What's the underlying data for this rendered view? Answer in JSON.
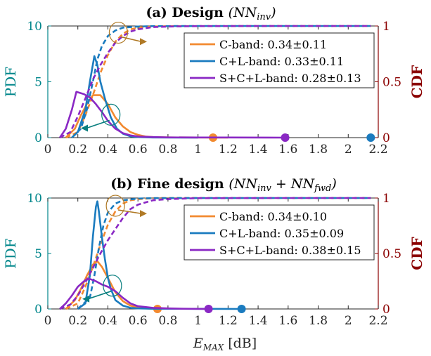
{
  "colors": {
    "pdf_axis": "#00868b",
    "cdf_axis": "#8b0000",
    "C-band": "#f28a30",
    "C+L-band": "#1a7bbf",
    "S+C+L-band": "#8a28c4",
    "annotation_cdf": "#b07a26",
    "annotation_pdf": "#0a7f7f"
  },
  "xlabel": {
    "var": "E",
    "sub": "MAX",
    "unit": "[dB]"
  },
  "chart_data": [
    {
      "type": "line",
      "title": {
        "text": "(a) Design",
        "math": "(NN",
        "math_sub": "inv",
        "math_end": ")"
      },
      "xlim": [
        0,
        2.2
      ],
      "xticks": [
        "0",
        "0.2",
        "0.4",
        "0.6",
        "0.8",
        "1",
        "1.2",
        "1.4",
        "1.6",
        "1.8",
        "2",
        "2.2"
      ],
      "xtick_values": [
        0,
        0.2,
        0.4,
        0.6,
        0.8,
        1.0,
        1.2,
        1.4,
        1.6,
        1.8,
        2.0,
        2.2
      ],
      "y_left": {
        "label": "PDF",
        "lim": [
          0,
          10
        ],
        "ticks": [
          "0",
          "5",
          "10"
        ],
        "tick_values": [
          0,
          5,
          10
        ]
      },
      "y_right": {
        "label": "CDF",
        "lim": [
          0,
          1
        ],
        "ticks": [
          "0",
          "0.5",
          "1"
        ],
        "tick_values": [
          0,
          0.5,
          1
        ]
      },
      "legend": [
        "C-band: 0.34±0.11",
        "C+L-band: 0.33±0.11",
        "S+C+L-band: 0.28±0.13"
      ],
      "legend_position": "top-right",
      "series": [
        {
          "name": "C-band",
          "pdf": {
            "x": [
              0.12,
              0.18,
              0.22,
              0.26,
              0.3,
              0.35,
              0.4,
              0.45,
              0.5,
              0.55,
              0.6,
              0.65,
              0.7,
              0.8,
              1.0,
              1.2
            ],
            "y": [
              0,
              0.8,
              2.0,
              3.0,
              3.8,
              3.8,
              3.0,
              1.8,
              1.0,
              0.5,
              0.25,
              0.1,
              0.05,
              0.02,
              0.01,
              0
            ]
          },
          "cdf": {
            "x": [
              0.12,
              0.2,
              0.25,
              0.3,
              0.35,
              0.4,
              0.45,
              0.5,
              0.55,
              0.6,
              0.7,
              0.8,
              1.0,
              1.5,
              2.15
            ],
            "y": [
              0,
              0.05,
              0.2,
              0.38,
              0.58,
              0.74,
              0.86,
              0.93,
              0.97,
              0.985,
              0.995,
              0.998,
              0.999,
              1,
              1
            ]
          },
          "marker_x": 1.1
        },
        {
          "name": "C+L-band",
          "pdf": {
            "x": [
              0.16,
              0.2,
              0.25,
              0.28,
              0.31,
              0.33,
              0.35,
              0.38,
              0.42,
              0.46,
              0.5,
              0.55,
              0.6,
              0.7,
              1.0
            ],
            "y": [
              0,
              0.5,
              2.5,
              5.0,
              7.3,
              6.5,
              5.0,
              3.5,
              1.8,
              0.8,
              0.35,
              0.12,
              0.05,
              0.01,
              0
            ]
          },
          "cdf": {
            "x": [
              0.16,
              0.22,
              0.26,
              0.3,
              0.33,
              0.36,
              0.4,
              0.45,
              0.5,
              0.6,
              0.7,
              1.0,
              1.5,
              2.15
            ],
            "y": [
              0,
              0.08,
              0.25,
              0.5,
              0.7,
              0.82,
              0.91,
              0.96,
              0.985,
              0.995,
              0.999,
              1,
              1,
              1
            ]
          },
          "marker_x": 2.15
        },
        {
          "name": "S+C+L-band",
          "pdf": {
            "x": [
              0.08,
              0.12,
              0.16,
              0.19,
              0.24,
              0.28,
              0.32,
              0.36,
              0.4,
              0.45,
              0.5,
              0.55,
              0.6,
              0.7,
              0.8,
              1.0,
              1.2,
              1.58
            ],
            "y": [
              0,
              0.8,
              2.5,
              4.1,
              3.9,
              3.6,
              3.0,
              2.3,
              1.5,
              0.8,
              0.4,
              0.2,
              0.1,
              0.05,
              0.02,
              0.01,
              0.01,
              0
            ]
          },
          "cdf": {
            "x": [
              0.08,
              0.15,
              0.2,
              0.25,
              0.3,
              0.35,
              0.4,
              0.45,
              0.5,
              0.55,
              0.6,
              0.7,
              0.8,
              1.0,
              1.5,
              2.15
            ],
            "y": [
              0,
              0.05,
              0.19,
              0.35,
              0.52,
              0.65,
              0.76,
              0.85,
              0.91,
              0.95,
              0.97,
              0.99,
              0.995,
              0.999,
              1,
              1
            ]
          },
          "marker_x": 1.58
        }
      ],
      "annotations": [
        {
          "kind": "cdf-arrow",
          "ellipse": [
            0.47,
            0.94
          ],
          "to": [
            0.66,
            0.86
          ]
        },
        {
          "kind": "pdf-arrow",
          "ellipse": [
            0.42,
            2.05
          ],
          "to": [
            0.22,
            0.85
          ]
        }
      ]
    },
    {
      "type": "line",
      "title": {
        "text": "(b) Fine design",
        "math": "(NN",
        "math_sub": "inv",
        "math_mid": " + NN",
        "math_sub2": "fwd",
        "math_end": ")"
      },
      "xlim": [
        0,
        2.2
      ],
      "xticks": [
        "0",
        "0.2",
        "0.4",
        "0.6",
        "0.8",
        "1",
        "1.2",
        "1.4",
        "1.6",
        "1.8",
        "2",
        "2.2"
      ],
      "xtick_values": [
        0,
        0.2,
        0.4,
        0.6,
        0.8,
        1.0,
        1.2,
        1.4,
        1.6,
        1.8,
        2.0,
        2.2
      ],
      "y_left": {
        "label": "PDF",
        "lim": [
          0,
          10
        ],
        "ticks": [
          "0",
          "5",
          "10"
        ],
        "tick_values": [
          0,
          5,
          10
        ]
      },
      "y_right": {
        "label": "CDF",
        "lim": [
          0,
          1
        ],
        "ticks": [
          "0",
          "0.5",
          "1"
        ],
        "tick_values": [
          0,
          0.5,
          1
        ]
      },
      "legend": [
        "C-band: 0.34±0.10",
        "C+L-band: 0.35±0.09",
        "S+C+L-band: 0.38±0.15"
      ],
      "legend_position": "top-right",
      "series": [
        {
          "name": "C-band",
          "pdf": {
            "x": [
              0.12,
              0.18,
              0.22,
              0.26,
              0.3,
              0.33,
              0.36,
              0.4,
              0.45,
              0.5,
              0.55,
              0.6,
              0.65,
              0.7,
              0.75
            ],
            "y": [
              0,
              0.8,
              1.8,
              3.0,
              4.0,
              4.3,
              3.8,
              2.8,
              1.5,
              0.7,
              0.3,
              0.12,
              0.05,
              0.02,
              0
            ]
          },
          "cdf": {
            "x": [
              0.12,
              0.2,
              0.25,
              0.3,
              0.35,
              0.4,
              0.45,
              0.5,
              0.55,
              0.6,
              0.7,
              0.75,
              1.0,
              2.15
            ],
            "y": [
              0,
              0.05,
              0.2,
              0.38,
              0.58,
              0.76,
              0.88,
              0.95,
              0.98,
              0.99,
              0.998,
              1,
              1,
              1
            ]
          },
          "marker_x": 0.73
        },
        {
          "name": "C+L-band",
          "pdf": {
            "x": [
              0.2,
              0.25,
              0.28,
              0.3,
              0.32,
              0.33,
              0.34,
              0.36,
              0.38,
              0.4,
              0.42,
              0.45,
              0.5,
              0.55,
              0.6,
              0.7,
              1.0,
              1.3
            ],
            "y": [
              0,
              0.5,
              3.0,
              6.5,
              9.2,
              9.7,
              8.8,
              6.5,
              4.5,
              2.8,
              1.8,
              0.8,
              0.3,
              0.1,
              0.05,
              0.02,
              0.01,
              0
            ]
          },
          "cdf": {
            "x": [
              0.2,
              0.28,
              0.31,
              0.34,
              0.37,
              0.4,
              0.45,
              0.5,
              0.6,
              0.7,
              1.0,
              1.3,
              2.15
            ],
            "y": [
              0,
              0.1,
              0.3,
              0.55,
              0.75,
              0.87,
              0.95,
              0.98,
              0.995,
              0.999,
              1,
              1,
              1
            ]
          },
          "marker_x": 1.29
        },
        {
          "name": "S+C+L-band",
          "pdf": {
            "x": [
              0.08,
              0.12,
              0.16,
              0.2,
              0.25,
              0.28,
              0.32,
              0.36,
              0.4,
              0.45,
              0.5,
              0.55,
              0.6,
              0.7,
              0.8,
              0.9,
              1.07
            ],
            "y": [
              0,
              0.5,
              1.2,
              2.0,
              2.6,
              2.7,
              2.5,
              2.2,
              2.0,
              1.6,
              1.0,
              0.5,
              0.25,
              0.1,
              0.05,
              0.02,
              0
            ]
          },
          "cdf": {
            "x": [
              0.08,
              0.15,
              0.2,
              0.25,
              0.3,
              0.35,
              0.4,
              0.45,
              0.5,
              0.55,
              0.6,
              0.7,
              0.8,
              1.0,
              1.5,
              2.15
            ],
            "y": [
              0,
              0.04,
              0.12,
              0.24,
              0.37,
              0.5,
              0.62,
              0.72,
              0.82,
              0.9,
              0.94,
              0.98,
              0.99,
              0.999,
              1,
              1
            ]
          },
          "marker_x": 1.07
        }
      ],
      "annotations": [
        {
          "kind": "cdf-arrow",
          "ellipse": [
            0.45,
            0.93
          ],
          "to": [
            0.66,
            0.86
          ]
        },
        {
          "kind": "pdf-arrow",
          "ellipse": [
            0.43,
            2.1
          ],
          "to": [
            0.23,
            0.9
          ]
        }
      ]
    }
  ]
}
